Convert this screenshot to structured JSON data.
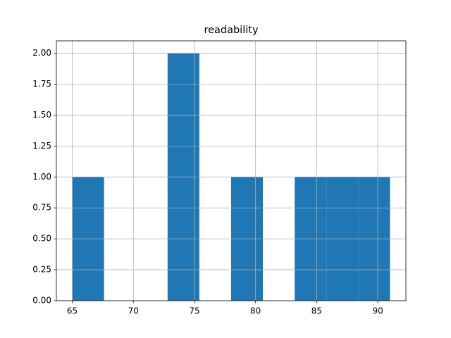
{
  "chart_data": {
    "type": "histogram",
    "title": "readability",
    "bins": [
      65,
      67.6,
      70.2,
      72.8,
      75.4,
      78,
      80.6,
      83.2,
      85.8,
      88.4,
      91
    ],
    "values": [
      1,
      0,
      0,
      2,
      0,
      1,
      0,
      1,
      1,
      1
    ],
    "color": "#1f77b4",
    "xlim": [
      63.7,
      92.3
    ],
    "xticks": [
      65,
      70,
      75,
      80,
      85,
      90
    ],
    "ylim": [
      0,
      2.1
    ],
    "yticks": [
      {
        "value": 0,
        "label": "0.00"
      },
      {
        "value": 0.25,
        "label": "0.25"
      },
      {
        "value": 0.5,
        "label": "0.50"
      },
      {
        "value": 0.75,
        "label": "0.75"
      },
      {
        "value": 1,
        "label": "1.00"
      },
      {
        "value": 1.25,
        "label": "1.25"
      },
      {
        "value": 1.5,
        "label": "1.50"
      },
      {
        "value": 1.75,
        "label": "1.75"
      },
      {
        "value": 2,
        "label": "2.00"
      }
    ],
    "grid": true
  }
}
